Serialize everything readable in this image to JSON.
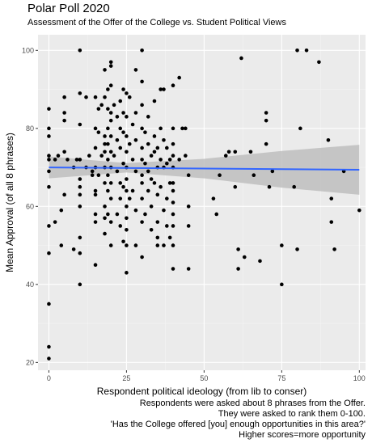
{
  "chart_data": {
    "type": "scatter",
    "title": "Polar Poll 2020",
    "subtitle": "Assessment of the Offer of the College vs. Student Political Views",
    "xlabel": "Respondent political ideology (from lib to conser)",
    "ylabel": "Mean Approval (of all 8 phrases)",
    "xlim": [
      -3.5,
      102
    ],
    "ylim": [
      18,
      104
    ],
    "xticks": [
      0,
      25,
      50,
      75,
      100
    ],
    "yticks": [
      20,
      40,
      60,
      80,
      100
    ],
    "grid": true,
    "background": "#ebebeb",
    "point_color": "#000000",
    "fit_line": {
      "method": "linear regression with confidence band",
      "color": "#3366ff",
      "band_color": "#bebebe",
      "x": [
        0,
        100
      ],
      "y": [
        70.0,
        69.4
      ],
      "band": [
        {
          "x": 0,
          "lower": 67.2,
          "upper": 72.8
        },
        {
          "x": 25,
          "lower": 68.7,
          "upper": 71.1
        },
        {
          "x": 50,
          "lower": 67.2,
          "upper": 72.2
        },
        {
          "x": 75,
          "lower": 64.8,
          "upper": 74.2
        },
        {
          "x": 100,
          "lower": 63.0,
          "upper": 75.8
        }
      ]
    },
    "points": [
      [
        0,
        85
      ],
      [
        0,
        80
      ],
      [
        0,
        78
      ],
      [
        0,
        73
      ],
      [
        0,
        72
      ],
      [
        0,
        69
      ],
      [
        0,
        65
      ],
      [
        0,
        55
      ],
      [
        0,
        48
      ],
      [
        0,
        35
      ],
      [
        0,
        24
      ],
      [
        0,
        21
      ],
      [
        2,
        56
      ],
      [
        2,
        72
      ],
      [
        3,
        73
      ],
      [
        4,
        59
      ],
      [
        4,
        50
      ],
      [
        5,
        88
      ],
      [
        5,
        84
      ],
      [
        5,
        82
      ],
      [
        5,
        74
      ],
      [
        5,
        63
      ],
      [
        6,
        72
      ],
      [
        8,
        49
      ],
      [
        8,
        70
      ],
      [
        9,
        72
      ],
      [
        10,
        100
      ],
      [
        10,
        89
      ],
      [
        10,
        81
      ],
      [
        10,
        72
      ],
      [
        10,
        67
      ],
      [
        10,
        65
      ],
      [
        10,
        63
      ],
      [
        10,
        60
      ],
      [
        10,
        52
      ],
      [
        10,
        48
      ],
      [
        10,
        40
      ],
      [
        12,
        88
      ],
      [
        12,
        70
      ],
      [
        13,
        73
      ],
      [
        14,
        69
      ],
      [
        14,
        68
      ],
      [
        15,
        88
      ],
      [
        15,
        80
      ],
      [
        15,
        75
      ],
      [
        15,
        70
      ],
      [
        15,
        64
      ],
      [
        15,
        63
      ],
      [
        15,
        58
      ],
      [
        15,
        56
      ],
      [
        15,
        45
      ],
      [
        16,
        85
      ],
      [
        16,
        79
      ],
      [
        16,
        68
      ],
      [
        17,
        86
      ],
      [
        17,
        73
      ],
      [
        18,
        95
      ],
      [
        18,
        88
      ],
      [
        18,
        78
      ],
      [
        18,
        76
      ],
      [
        18,
        74
      ],
      [
        18,
        70
      ],
      [
        18,
        66
      ],
      [
        18,
        60
      ],
      [
        18,
        57
      ],
      [
        18,
        53
      ],
      [
        19,
        90
      ],
      [
        19,
        85
      ],
      [
        19,
        80
      ],
      [
        19,
        76
      ],
      [
        19,
        72
      ],
      [
        19,
        68
      ],
      [
        19,
        64
      ],
      [
        19,
        58
      ],
      [
        20,
        97
      ],
      [
        20,
        96
      ],
      [
        20,
        91
      ],
      [
        20,
        84
      ],
      [
        20,
        82
      ],
      [
        20,
        78
      ],
      [
        20,
        74
      ],
      [
        20,
        70
      ],
      [
        20,
        66
      ],
      [
        20,
        62
      ],
      [
        20,
        56
      ],
      [
        20,
        50
      ],
      [
        21,
        86
      ],
      [
        21,
        73
      ],
      [
        22,
        83
      ],
      [
        22,
        77
      ],
      [
        22,
        69
      ],
      [
        22,
        58
      ],
      [
        23,
        87
      ],
      [
        23,
        80
      ],
      [
        23,
        75
      ],
      [
        23,
        66
      ],
      [
        23,
        62
      ],
      [
        23,
        55
      ],
      [
        24,
        90
      ],
      [
        24,
        84
      ],
      [
        24,
        79
      ],
      [
        24,
        71
      ],
      [
        24,
        65
      ],
      [
        24,
        51
      ],
      [
        25,
        89
      ],
      [
        25,
        83
      ],
      [
        25,
        78
      ],
      [
        25,
        74
      ],
      [
        25,
        70
      ],
      [
        25,
        67
      ],
      [
        25,
        64
      ],
      [
        25,
        60
      ],
      [
        25,
        57
      ],
      [
        25,
        54
      ],
      [
        25,
        50
      ],
      [
        25,
        43
      ],
      [
        26,
        88
      ],
      [
        26,
        76
      ],
      [
        26,
        62
      ],
      [
        27,
        81
      ],
      [
        27,
        72
      ],
      [
        27,
        64
      ],
      [
        28,
        95
      ],
      [
        28,
        84
      ],
      [
        28,
        77
      ],
      [
        28,
        69
      ],
      [
        28,
        59
      ],
      [
        28,
        50
      ],
      [
        30,
        100
      ],
      [
        30,
        92
      ],
      [
        30,
        86
      ],
      [
        30,
        80
      ],
      [
        30,
        75
      ],
      [
        30,
        72
      ],
      [
        30,
        68
      ],
      [
        30,
        66
      ],
      [
        30,
        62
      ],
      [
        30,
        56
      ],
      [
        30,
        47
      ],
      [
        31,
        79
      ],
      [
        31,
        71
      ],
      [
        31,
        58
      ],
      [
        32,
        83
      ],
      [
        32,
        76
      ],
      [
        32,
        69
      ],
      [
        32,
        64
      ],
      [
        33,
        73
      ],
      [
        33,
        67
      ],
      [
        33,
        60
      ],
      [
        33,
        54
      ],
      [
        34,
        87
      ],
      [
        34,
        78
      ],
      [
        34,
        74
      ],
      [
        34,
        66
      ],
      [
        35,
        75
      ],
      [
        35,
        70
      ],
      [
        35,
        63
      ],
      [
        35,
        56
      ],
      [
        35,
        52
      ],
      [
        35,
        50
      ],
      [
        36,
        90
      ],
      [
        36,
        80
      ],
      [
        36,
        72
      ],
      [
        36,
        65
      ],
      [
        37,
        90
      ],
      [
        37,
        77
      ],
      [
        37,
        70
      ],
      [
        37,
        59
      ],
      [
        37,
        50
      ],
      [
        38,
        75
      ],
      [
        38,
        71
      ],
      [
        38,
        62
      ],
      [
        38,
        55
      ],
      [
        39,
        72
      ],
      [
        39,
        66
      ],
      [
        39,
        52
      ],
      [
        40,
        91
      ],
      [
        40,
        80
      ],
      [
        40,
        76
      ],
      [
        40,
        73
      ],
      [
        40,
        70
      ],
      [
        40,
        66
      ],
      [
        40,
        64
      ],
      [
        40,
        61
      ],
      [
        40,
        58
      ],
      [
        40,
        55
      ],
      [
        40,
        50
      ],
      [
        40,
        44
      ],
      [
        42,
        93
      ],
      [
        42,
        72
      ],
      [
        43,
        80
      ],
      [
        44,
        80
      ],
      [
        44,
        73
      ],
      [
        45,
        68
      ],
      [
        45,
        60
      ],
      [
        45,
        55
      ],
      [
        45,
        44
      ],
      [
        53,
        62
      ],
      [
        54,
        58
      ],
      [
        55,
        68
      ],
      [
        57,
        73
      ],
      [
        58,
        74
      ],
      [
        60,
        74
      ],
      [
        60,
        65
      ],
      [
        61,
        44
      ],
      [
        61,
        49
      ],
      [
        62,
        98
      ],
      [
        63,
        47
      ],
      [
        65,
        74
      ],
      [
        66,
        68
      ],
      [
        68,
        46
      ],
      [
        70,
        84
      ],
      [
        70,
        82
      ],
      [
        70,
        76
      ],
      [
        71,
        65
      ],
      [
        72,
        69
      ],
      [
        75,
        50
      ],
      [
        75,
        40
      ],
      [
        79,
        65
      ],
      [
        80,
        100
      ],
      [
        80,
        49
      ],
      [
        81,
        80
      ],
      [
        83,
        100
      ],
      [
        87,
        97
      ],
      [
        90,
        77
      ],
      [
        91,
        62
      ],
      [
        91,
        56
      ],
      [
        92,
        49
      ],
      [
        95,
        69
      ],
      [
        100,
        59
      ]
    ]
  },
  "captions": [
    "Respondents were asked about 8 phrases from the Offer.",
    "They were asked to rank them 0-100.",
    "'Has the College offered [you] enough opportunities in this area?'",
    "Higher scores=more opportunity"
  ]
}
